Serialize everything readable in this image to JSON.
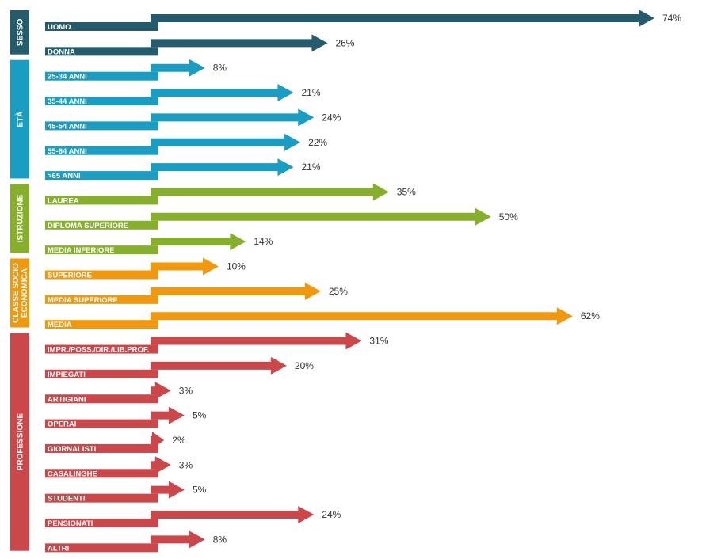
{
  "chart_data": {
    "type": "bar",
    "orientation": "horizontal",
    "value_suffix": "%",
    "xlim": [
      0,
      74
    ],
    "groups": [
      {
        "name": "SESSO",
        "color": "#245c6e",
        "categories": [
          "UOMO",
          "DONNA"
        ],
        "values": [
          74,
          26
        ]
      },
      {
        "name": "ETÀ",
        "color": "#1a9dc2",
        "categories": [
          "25-34 ANNI",
          "35-44 ANNI",
          "45-54 ANNI",
          "55-64 ANNI",
          ">65 ANNI"
        ],
        "values": [
          8,
          21,
          24,
          22,
          21
        ]
      },
      {
        "name": "ISTRUZIONE",
        "color": "#86b02b",
        "categories": [
          "LAUREA",
          "DIPLOMA SUPERIORE",
          "MEDIA INFERIORE"
        ],
        "values": [
          35,
          50,
          14
        ]
      },
      {
        "name": "CLASSE SOCIO ECONOMICA",
        "name_lines": [
          "CLASSE SOCIO",
          "ECONOMICA"
        ],
        "color": "#f0990e",
        "categories": [
          "SUPERIORE",
          "MEDIA SUPERIORE",
          "MEDIA"
        ],
        "values": [
          10,
          25,
          62
        ]
      },
      {
        "name": "PROFESSIONE",
        "color": "#cc474a",
        "categories": [
          "IMPR./POSS./DIR./LIB.PROF.",
          "IMPIEGATI",
          "ARTIGIANI",
          "OPERAI",
          "GIORNALISTI",
          "CASALINGHE",
          "STUDENTI",
          "PENSIONATI",
          "ALTRI"
        ],
        "values": [
          31,
          20,
          3,
          5,
          2,
          3,
          5,
          24,
          8
        ]
      }
    ]
  }
}
